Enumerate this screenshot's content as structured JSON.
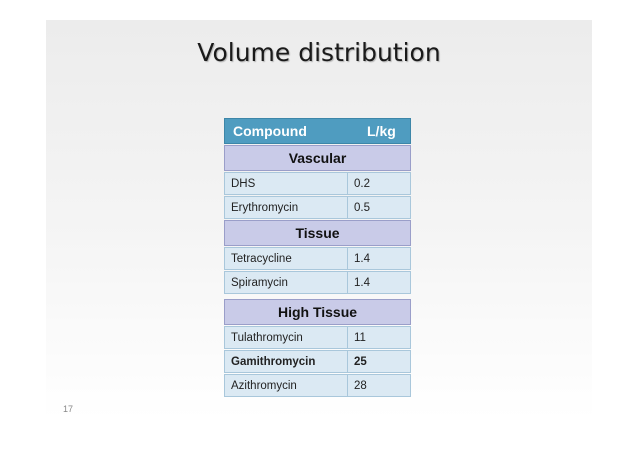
{
  "title": "Volume distribution",
  "slide_number": "17",
  "table": {
    "headers": [
      "Compound",
      "L/kg"
    ],
    "sections": [
      {
        "name": "Vascular",
        "rows": [
          {
            "compound": "DHS",
            "value": "0.2"
          },
          {
            "compound": "Erythromycin",
            "value": "0.5"
          }
        ]
      },
      {
        "name": "Tissue",
        "rows": [
          {
            "compound": "Tetracycline",
            "value": "1.4"
          },
          {
            "compound": "Spiramycin",
            "value": "1.4"
          }
        ]
      },
      {
        "name": "High Tissue",
        "rows": [
          {
            "compound": "Tulathromycin",
            "value": "11"
          },
          {
            "compound": "Gamithromycin",
            "value": "25",
            "bold": true
          },
          {
            "compound": "Azithromycin",
            "value": "28"
          }
        ]
      }
    ]
  }
}
